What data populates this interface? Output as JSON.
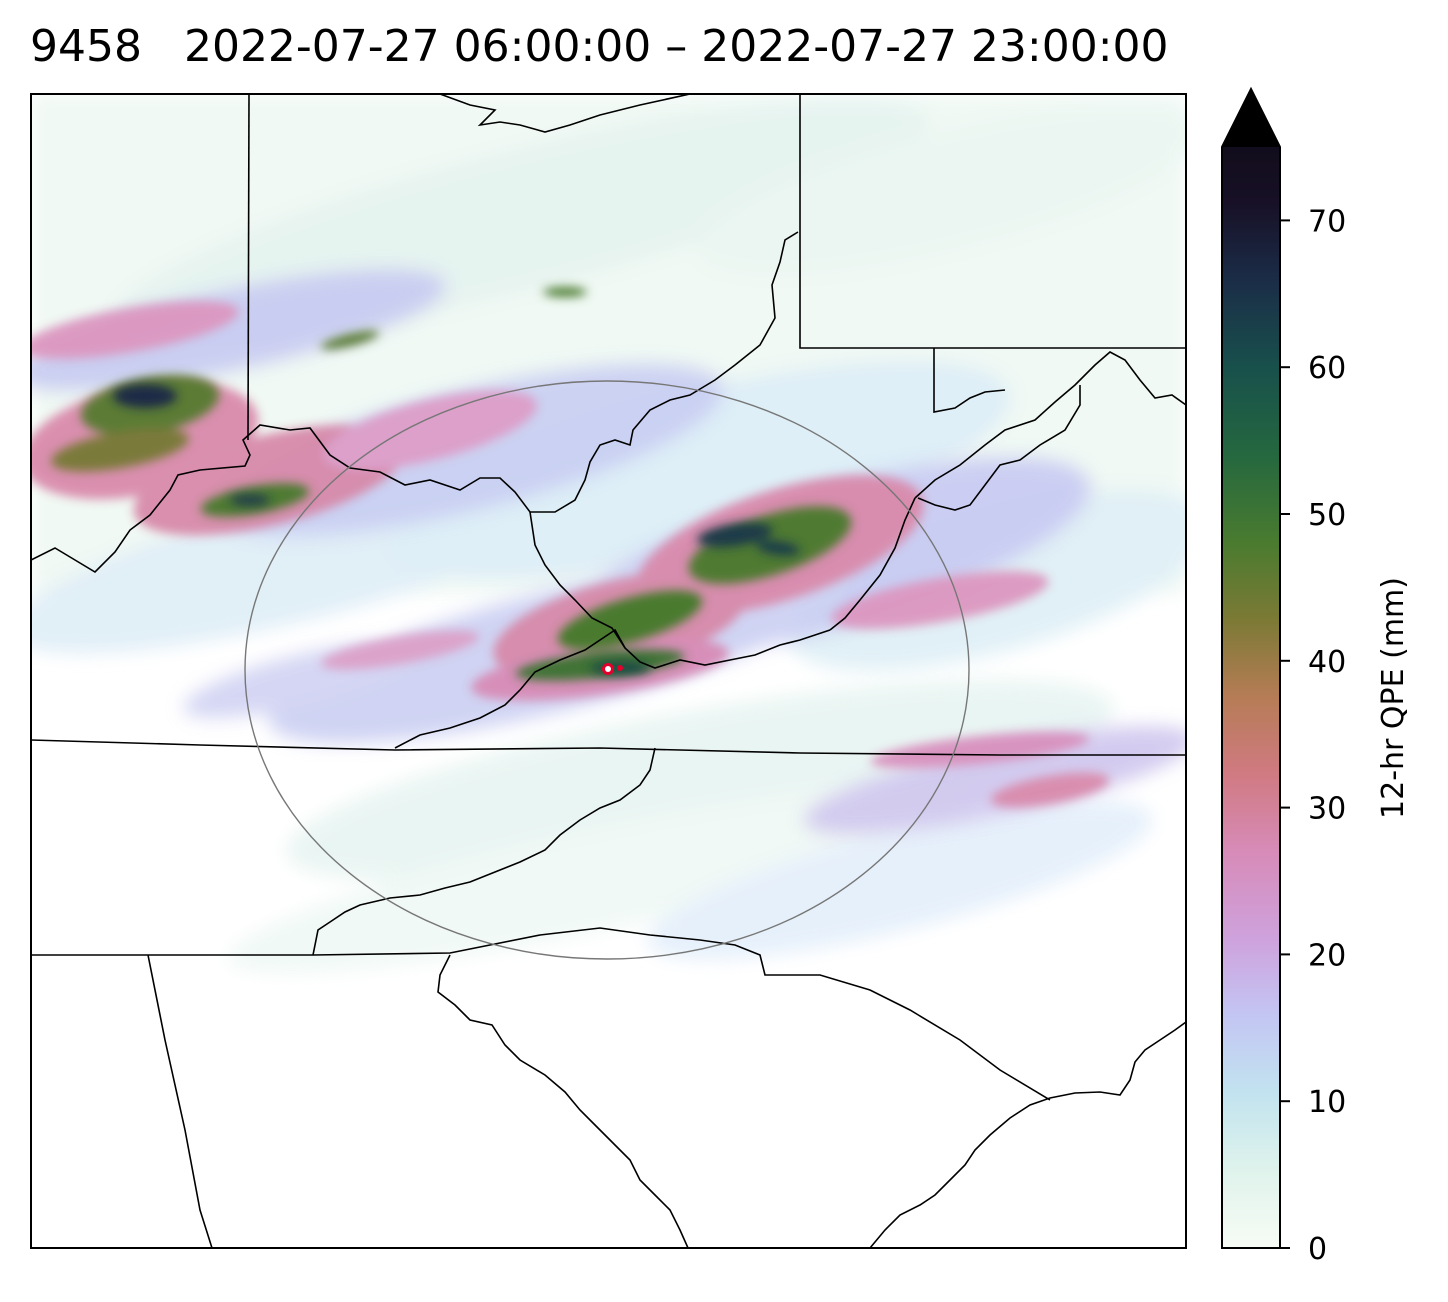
{
  "title": {
    "id": "9458",
    "time_range": "2022-07-27 06:00:00 – 2022-07-27 23:00:00"
  },
  "colorbar": {
    "label": "12-hr QPE (mm)",
    "ticks": [
      "0",
      "10",
      "20",
      "30",
      "40",
      "50",
      "60",
      "70"
    ],
    "min": 0,
    "max": 75,
    "extend": "max",
    "colors": [
      "#f7fcf5",
      "#dff3ec",
      "#c2e3ef",
      "#c3c6f3",
      "#cea2dd",
      "#d78bb8",
      "#d07a82",
      "#b67c56",
      "#7c7a35",
      "#4a7b2f",
      "#25683f",
      "#18504c",
      "#1b2c47",
      "#171026",
      "#000000"
    ]
  },
  "map": {
    "features": [
      "state-boundaries",
      "coastline",
      "range-ring",
      "station-marker"
    ],
    "accent_colors": {
      "outline": "#000000",
      "range_ring": "#777777",
      "marker": "#e4002b"
    }
  }
}
